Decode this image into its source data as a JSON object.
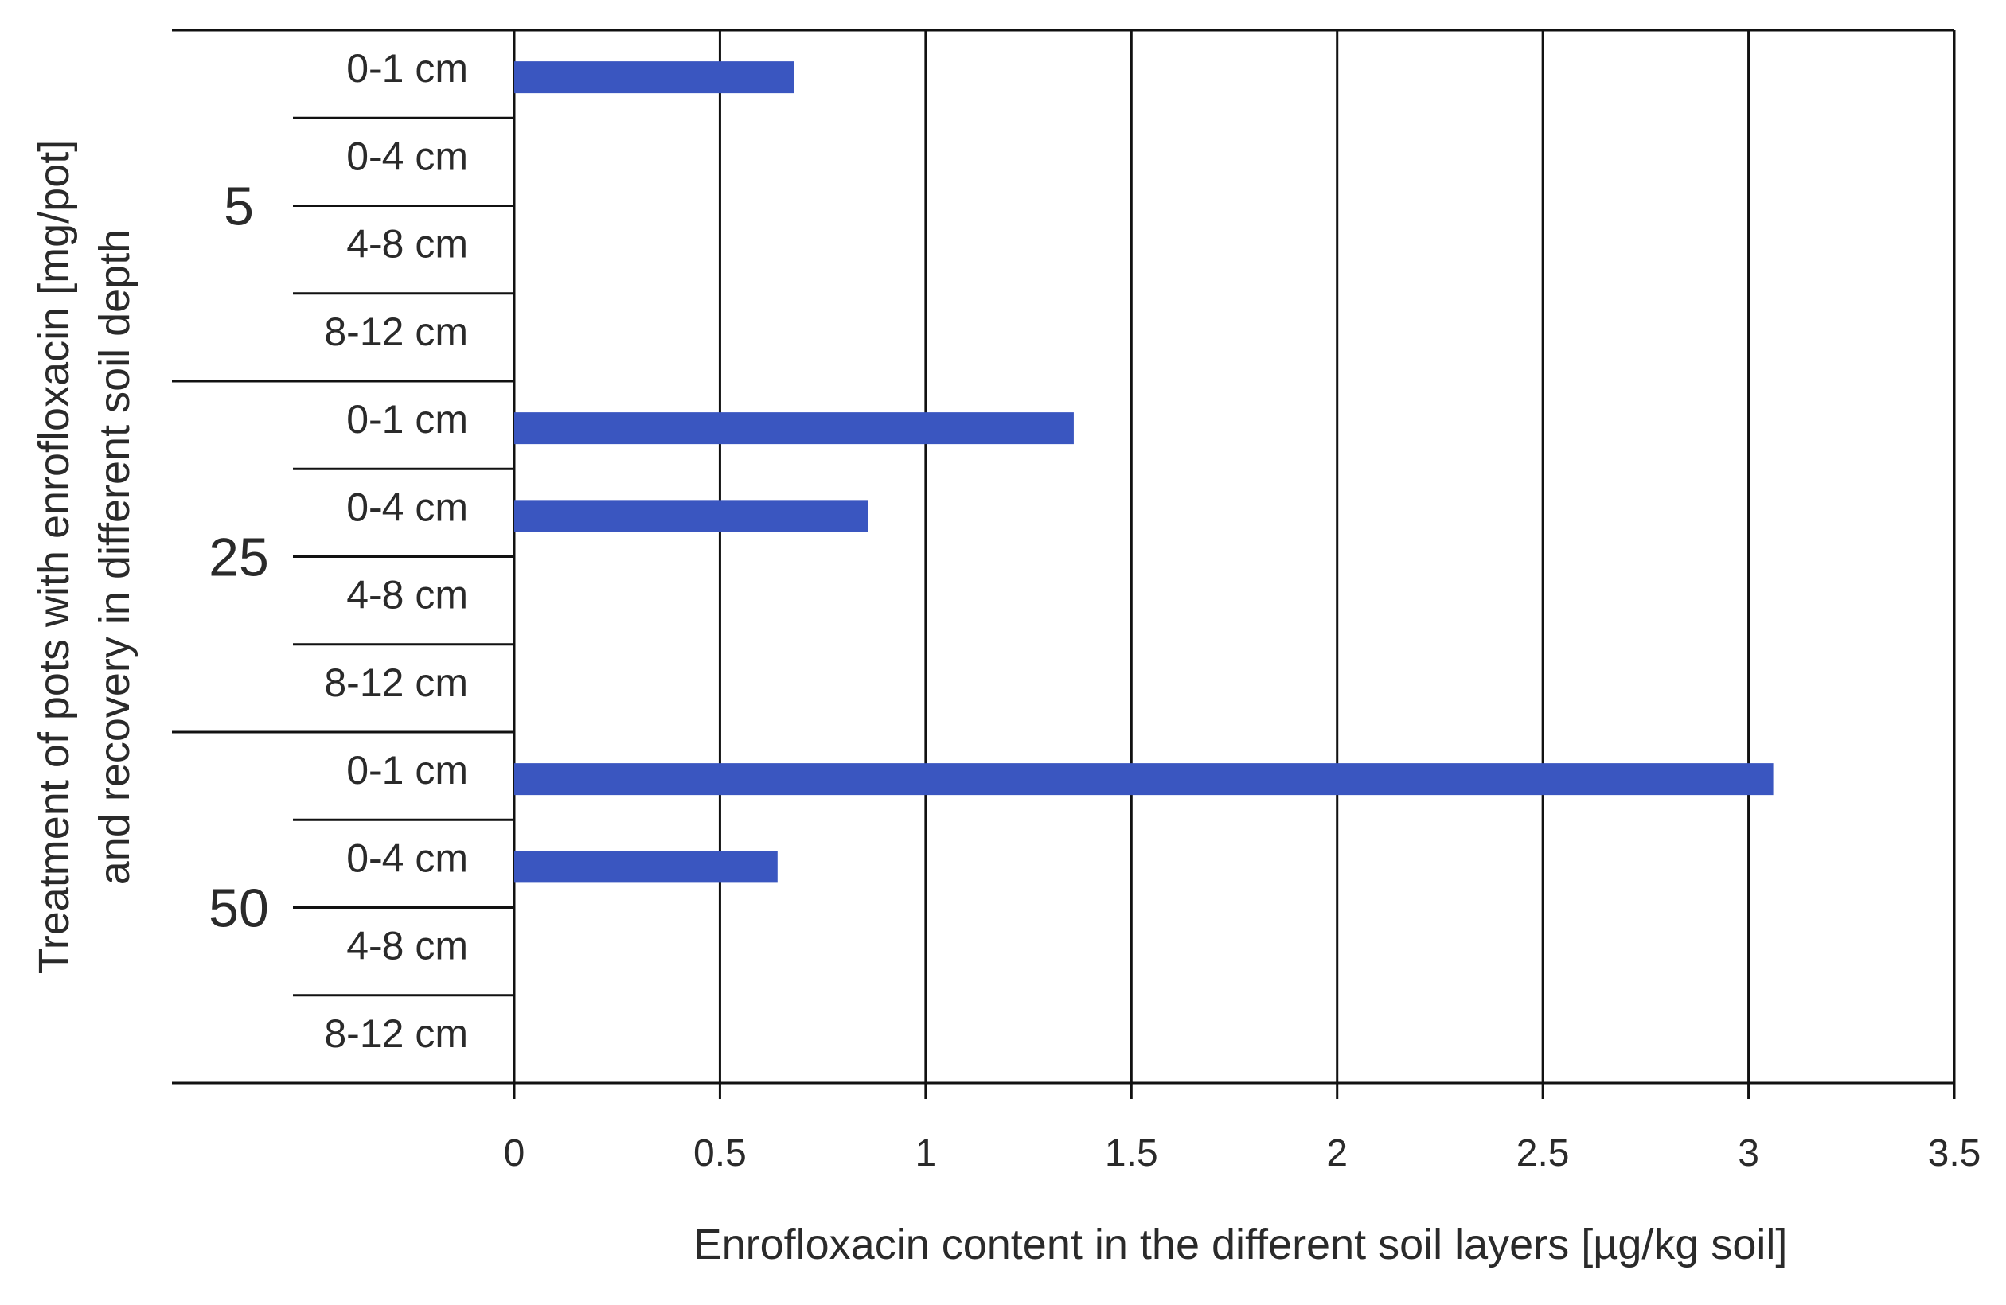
{
  "chart_data": {
    "type": "bar",
    "orientation": "horizontal",
    "title": "",
    "xlabel": "Enrofloxacin content in the different soil layers [µg/kg soil]",
    "ylabel_lines": [
      "Treatment of pots with enrofloxacin [mg/pot]",
      "and recovery in different soil depth"
    ],
    "xlim": [
      0,
      3.5
    ],
    "xticks": [
      "0",
      "0.5",
      "1",
      "1.5",
      "2",
      "2.5",
      "3",
      "3.5"
    ],
    "grid": "vertical",
    "bar_color": "#3a56c0",
    "groups": [
      {
        "label": "5",
        "rows": [
          {
            "label": "0-1 cm",
            "value": 0.68
          },
          {
            "label": "0-4 cm",
            "value": 0
          },
          {
            "label": "4-8 cm",
            "value": 0
          },
          {
            "label": "8-12 cm",
            "value": 0
          }
        ]
      },
      {
        "label": "25",
        "rows": [
          {
            "label": "0-1 cm",
            "value": 1.36
          },
          {
            "label": "0-4 cm",
            "value": 0.86
          },
          {
            "label": "4-8 cm",
            "value": 0
          },
          {
            "label": "8-12 cm",
            "value": 0
          }
        ]
      },
      {
        "label": "50",
        "rows": [
          {
            "label": "0-1 cm",
            "value": 3.06
          },
          {
            "label": "0-4 cm",
            "value": 0.64
          },
          {
            "label": "4-8 cm",
            "value": 0
          },
          {
            "label": "8-12 cm",
            "value": 0
          }
        ]
      }
    ]
  }
}
